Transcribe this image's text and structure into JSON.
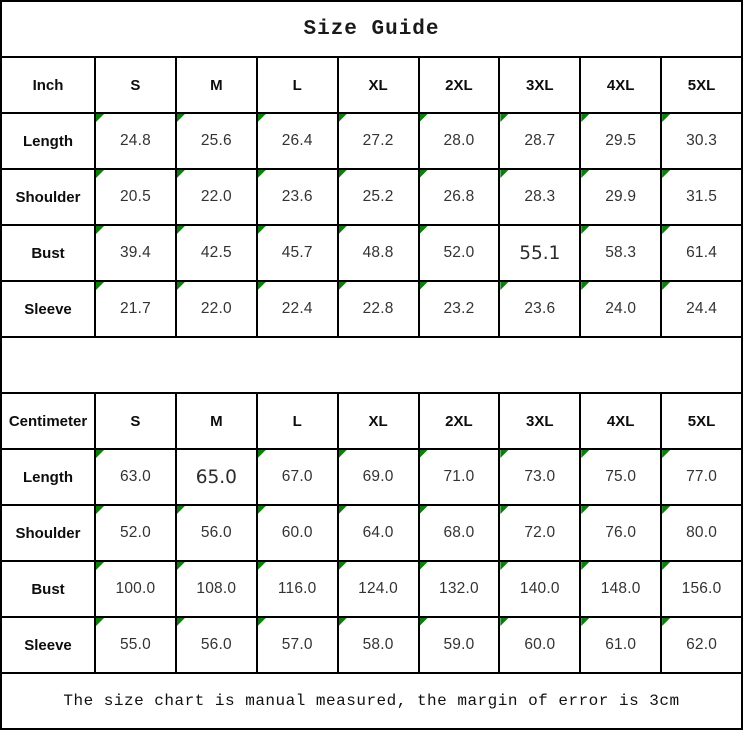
{
  "title": "Size Guide",
  "footer_note": "The size chart is manual measured, the margin of error is 3cm",
  "colors": {
    "border": "#000000",
    "flag_triangle_green": "#107c10",
    "background": "#ffffff"
  },
  "tables": [
    {
      "unit_label": "Inch",
      "sizes": [
        "S",
        "M",
        "L",
        "XL",
        "2XL",
        "3XL",
        "4XL",
        "5XL"
      ],
      "rows": [
        {
          "label": "Length",
          "values": [
            "24.8",
            "25.6",
            "26.4",
            "27.2",
            "28.0",
            "28.7",
            "29.5",
            "30.3"
          ],
          "no_flag_cols": []
        },
        {
          "label": "Shoulder",
          "values": [
            "20.5",
            "22.0",
            "23.6",
            "25.2",
            "26.8",
            "28.3",
            "29.9",
            "31.5"
          ],
          "no_flag_cols": []
        },
        {
          "label": "Bust",
          "values": [
            "39.4",
            "42.5",
            "45.7",
            "48.8",
            "52.0",
            "55.1",
            "58.3",
            "61.4"
          ],
          "no_flag_cols": [
            5
          ]
        },
        {
          "label": "Sleeve",
          "values": [
            "21.7",
            "22.0",
            "22.4",
            "22.8",
            "23.2",
            "23.6",
            "24.0",
            "24.4"
          ],
          "no_flag_cols": []
        }
      ]
    },
    {
      "unit_label": "Centimeter",
      "sizes": [
        "S",
        "M",
        "L",
        "XL",
        "2XL",
        "3XL",
        "4XL",
        "5XL"
      ],
      "rows": [
        {
          "label": "Length",
          "values": [
            "63.0",
            "65.0",
            "67.0",
            "69.0",
            "71.0",
            "73.0",
            "75.0",
            "77.0"
          ],
          "no_flag_cols": [
            1
          ]
        },
        {
          "label": "Shoulder",
          "values": [
            "52.0",
            "56.0",
            "60.0",
            "64.0",
            "68.0",
            "72.0",
            "76.0",
            "80.0"
          ],
          "no_flag_cols": []
        },
        {
          "label": "Bust",
          "values": [
            "100.0",
            "108.0",
            "116.0",
            "124.0",
            "132.0",
            "140.0",
            "148.0",
            "156.0"
          ],
          "no_flag_cols": []
        },
        {
          "label": "Sleeve",
          "values": [
            "55.0",
            "56.0",
            "57.0",
            "58.0",
            "59.0",
            "60.0",
            "61.0",
            "62.0"
          ],
          "no_flag_cols": []
        }
      ]
    }
  ]
}
